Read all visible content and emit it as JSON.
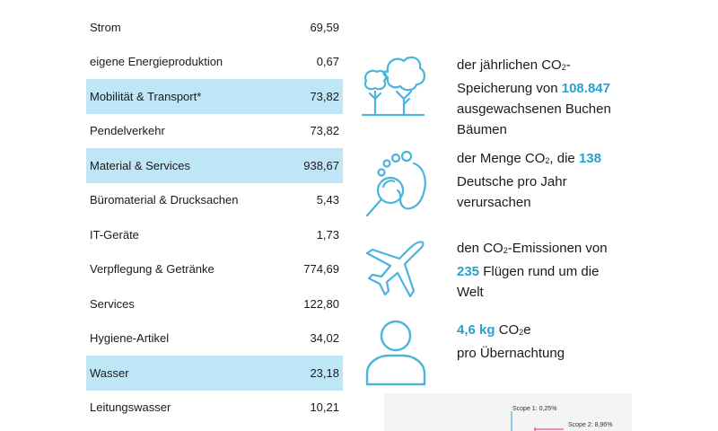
{
  "table": {
    "rows": [
      {
        "label": "Strom",
        "value": "69,59",
        "highlight": false
      },
      {
        "label": "eigene Energieproduktion",
        "value": "0,67",
        "highlight": false
      },
      {
        "label": "Mobilität & Transport*",
        "value": "73,82",
        "highlight": true
      },
      {
        "label": "Pendelverkehr",
        "value": "73,82",
        "highlight": false
      },
      {
        "label": "Material & Services",
        "value": "938,67",
        "highlight": true
      },
      {
        "label": "Büromaterial & Drucksachen",
        "value": "5,43",
        "highlight": false
      },
      {
        "label": "IT-Geräte",
        "value": "1,73",
        "highlight": false
      },
      {
        "label": "Verpflegung & Getränke",
        "value": "774,69",
        "highlight": false
      },
      {
        "label": "Services",
        "value": "122,80",
        "highlight": false
      },
      {
        "label": "Hygiene-Artikel",
        "value": "34,02",
        "highlight": false
      },
      {
        "label": "Wasser",
        "value": "23,18",
        "highlight": true
      },
      {
        "label": "Leitungswasser",
        "value": "10,21",
        "highlight": false
      }
    ]
  },
  "facts": {
    "trees": {
      "icon": "trees-icon",
      "line1": "der jährlichen CO",
      "line1_sub": "2",
      "line1_end": "-",
      "line2_pre": "Speicherung von ",
      "number": "108.847",
      "line3": "ausgewachsenen Buchen",
      "line4": "Bäumen"
    },
    "footprint": {
      "icon": "footprint-magnifier-icon",
      "line1_pre": "der Menge CO",
      "line1_sub": "2",
      "line1_post": ", die  ",
      "number": "138",
      "line2": "Deutsche pro Jahr",
      "line3": "verursachen"
    },
    "flights": {
      "icon": "airplane-icon",
      "line1_pre": "den CO",
      "line1_sub": "2",
      "line1_post": "-Emissionen von",
      "number": "235",
      "line2_post": " Flügen rund um die",
      "line3": "Welt"
    },
    "person": {
      "icon": "person-icon",
      "number": "4,6 kg",
      "line1_post": " CO",
      "line1_sub": "2",
      "line1_end": "e",
      "line2": "pro Übernachtung"
    }
  },
  "scope_chart": {
    "scope1": "Scope 1: 0,25%",
    "scope2": "Scope 2: 8,96%",
    "line_color": "#e0569a",
    "accent": "#2aa0cf"
  }
}
